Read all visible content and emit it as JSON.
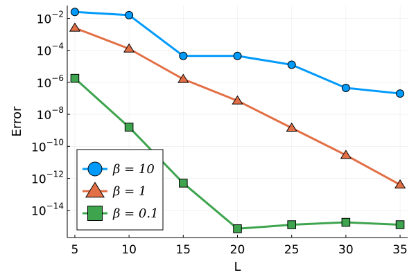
{
  "chart_data": {
    "type": "line",
    "xlabel": "L",
    "ylabel": "Error",
    "x": [
      5,
      10,
      15,
      20,
      25,
      30,
      35
    ],
    "xlim": [
      4.3,
      35.7
    ],
    "ylim_log10": [
      -15.7,
      -1.2
    ],
    "y_scale": "log10",
    "x_ticks": [
      5,
      10,
      15,
      20,
      25,
      30,
      35
    ],
    "x_tick_labels": [
      "5",
      "10",
      "15",
      "20",
      "25",
      "30",
      "35"
    ],
    "y_ticks_log10": [
      -2,
      -4,
      -6,
      -8,
      -10,
      -12,
      -14
    ],
    "y_tick_exponents": [
      "−2",
      "−4",
      "−6",
      "−8",
      "−10",
      "−12",
      "−14"
    ],
    "y_tick_base": "10",
    "grid": true,
    "legend_position": "bottom-left",
    "series": [
      {
        "name": "β = 10",
        "marker": "circle",
        "color": "#009AFA",
        "values_log10": [
          -1.6,
          -1.8,
          -4.35,
          -4.35,
          -4.9,
          -6.35,
          -6.7
        ]
      },
      {
        "name": "β = 1",
        "marker": "triangle",
        "color": "#E26F46",
        "values_log10": [
          -2.6,
          -3.9,
          -5.8,
          -7.15,
          -8.85,
          -10.55,
          -12.4
        ]
      },
      {
        "name": "β = 0.1",
        "marker": "square",
        "color": "#3EA44E",
        "values_log10": [
          -5.75,
          -8.8,
          -12.3,
          -15.15,
          -14.9,
          -14.75,
          -14.9
        ]
      }
    ]
  }
}
